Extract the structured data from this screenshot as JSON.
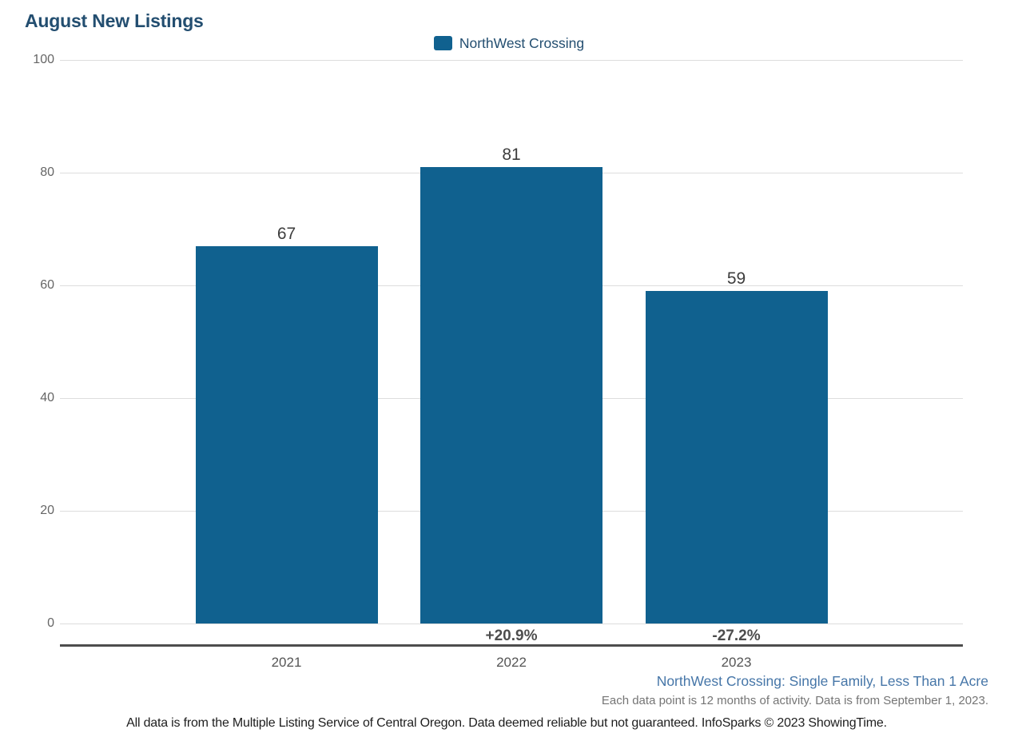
{
  "title": "August New Listings",
  "legend": {
    "label": "NorthWest Crossing",
    "swatch_color": "#10618f"
  },
  "colors": {
    "bar": "#10618f",
    "title_text": "#234e70",
    "grid": "#dddddd",
    "axis_line": "#4d4d4d",
    "value_label": "#3d3d3d",
    "pct_label": "#4d4d4d",
    "x_label": "#555555",
    "y_tick": "#666666",
    "footnote_blue": "#4676a8",
    "footnote_gray": "#757575",
    "disclaimer": "#1e1e1e"
  },
  "chart_data": {
    "type": "bar",
    "title": "August New Listings",
    "categories": [
      "2021",
      "2022",
      "2023"
    ],
    "series": [
      {
        "name": "NorthWest Crossing",
        "values": [
          67,
          81,
          59
        ]
      }
    ],
    "value_labels": [
      "67",
      "81",
      "59"
    ],
    "pct_change_labels": [
      "",
      "+20.9%",
      "-27.2%"
    ],
    "ylim": [
      0,
      100
    ],
    "yticks": [
      0,
      20,
      40,
      60,
      80,
      100
    ],
    "grid": true,
    "legend_position": "top-center",
    "xlabel": "",
    "ylabel": ""
  },
  "footnotes": {
    "segment": "NorthWest Crossing: Single Family, Less Than 1 Acre",
    "data_period": "Each data point is 12 months of activity. Data is from September 1, 2023.",
    "disclaimer": "All data is from the Multiple Listing Service of Central Oregon. Data deemed reliable but not guaranteed. InfoSparks © 2023 ShowingTime."
  }
}
